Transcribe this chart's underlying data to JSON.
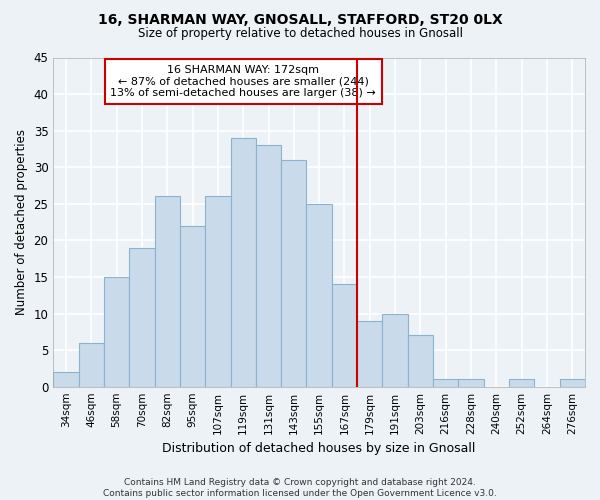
{
  "title1": "16, SHARMAN WAY, GNOSALL, STAFFORD, ST20 0LX",
  "title2": "Size of property relative to detached houses in Gnosall",
  "xlabel": "Distribution of detached houses by size in Gnosall",
  "ylabel": "Number of detached properties",
  "categories": [
    "34sqm",
    "46sqm",
    "58sqm",
    "70sqm",
    "82sqm",
    "95sqm",
    "107sqm",
    "119sqm",
    "131sqm",
    "143sqm",
    "155sqm",
    "167sqm",
    "179sqm",
    "191sqm",
    "203sqm",
    "216sqm",
    "228sqm",
    "240sqm",
    "252sqm",
    "264sqm",
    "276sqm"
  ],
  "values": [
    2,
    6,
    15,
    19,
    26,
    22,
    26,
    34,
    33,
    31,
    25,
    14,
    9,
    10,
    7,
    1,
    1,
    0,
    1,
    0,
    1
  ],
  "bar_color": "#c9daea",
  "bar_edge_color": "#8ab4cc",
  "vline_x": 11.5,
  "vline_color": "#cc0000",
  "annotation_line1": "16 SHARMAN WAY: 172sqm",
  "annotation_line2": "← 87% of detached houses are smaller (244)",
  "annotation_line3": "13% of semi-detached houses are larger (38) →",
  "annotation_box_color": "#cc0000",
  "ylim": [
    0,
    45
  ],
  "yticks": [
    0,
    5,
    10,
    15,
    20,
    25,
    30,
    35,
    40,
    45
  ],
  "bg_color": "#edf2f7",
  "grid_color": "#ffffff",
  "footer": "Contains HM Land Registry data © Crown copyright and database right 2024.\nContains public sector information licensed under the Open Government Licence v3.0."
}
